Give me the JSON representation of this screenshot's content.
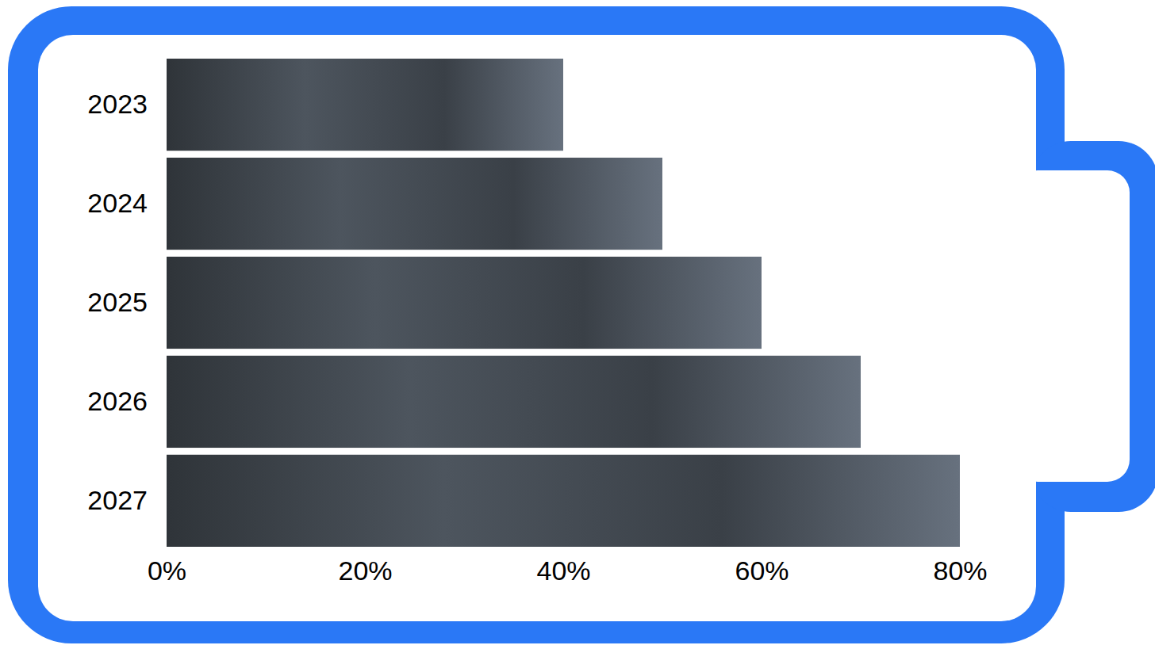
{
  "chart_data": {
    "type": "bar",
    "orientation": "horizontal",
    "categories": [
      "2023",
      "2024",
      "2025",
      "2026",
      "2027"
    ],
    "values": [
      40,
      50,
      60,
      70,
      80
    ],
    "color": "#3a4047",
    "xlim": [
      0,
      80
    ],
    "xticks": [
      {
        "value": 0,
        "label": "0%"
      },
      {
        "value": 20,
        "label": "20%"
      },
      {
        "value": 40,
        "label": "40%"
      },
      {
        "value": 60,
        "label": "60%"
      },
      {
        "value": 80,
        "label": "80%"
      }
    ],
    "grid": false
  }
}
